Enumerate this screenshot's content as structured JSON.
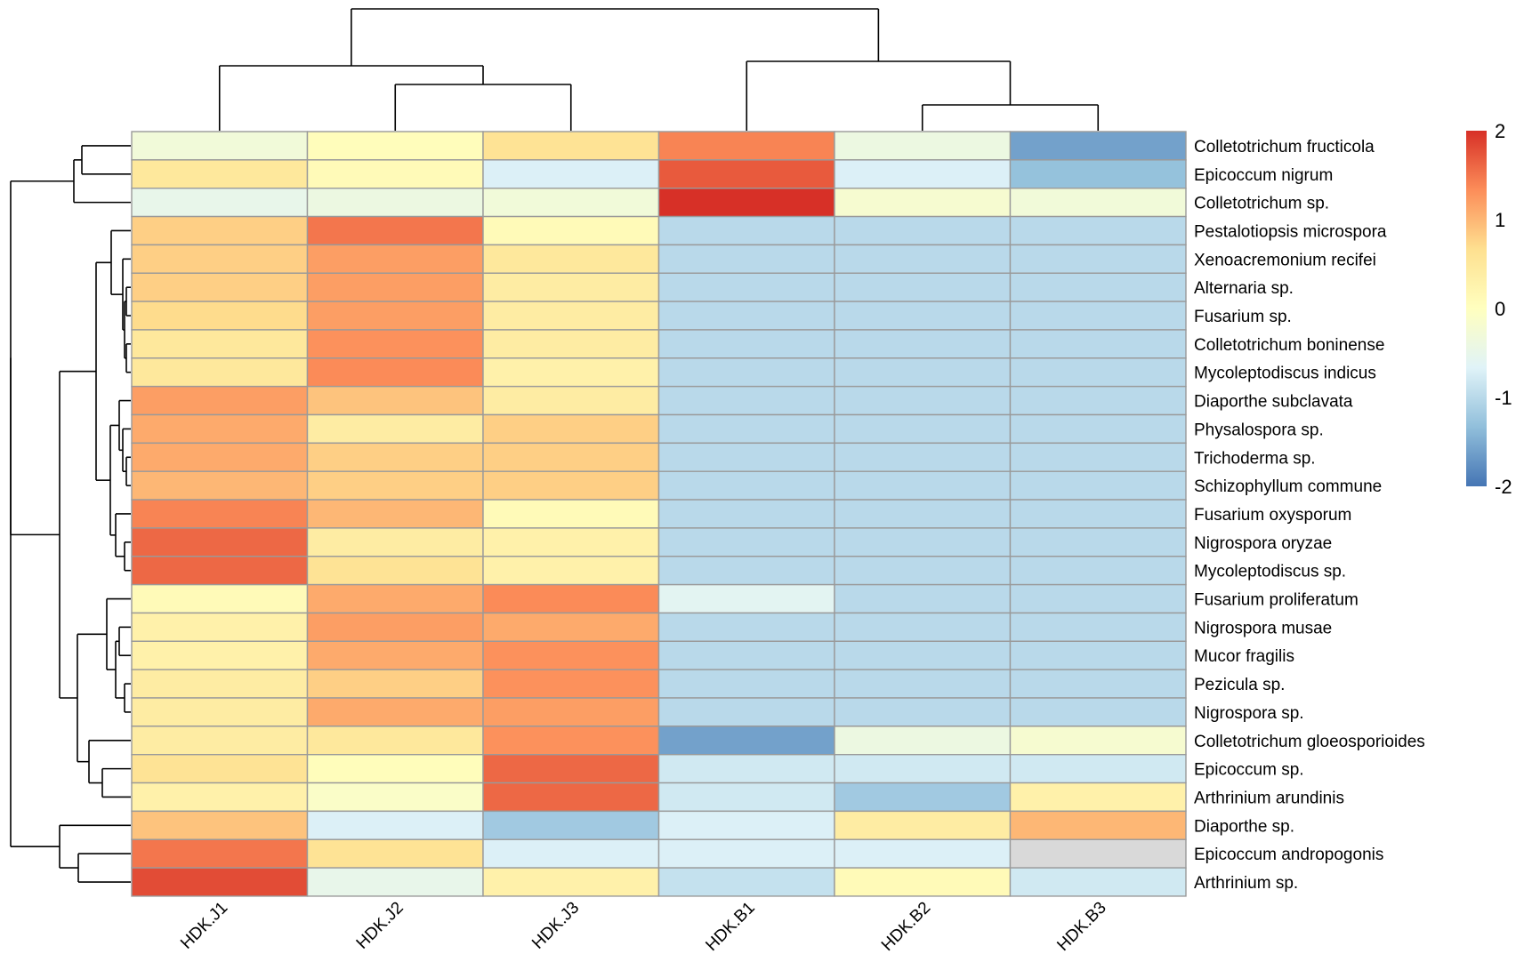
{
  "chart_data": {
    "type": "heatmap",
    "title": "",
    "columns": [
      "HDK.J1",
      "HDK.J2",
      "HDK.J3",
      "HDK.B1",
      "HDK.B2",
      "HDK.B3"
    ],
    "rows": [
      "Colletotrichum fructicola",
      "Epicoccum nigrum",
      "Colletotrichum sp.",
      "Pestalotiopsis microspora",
      "Xenoacremonium recifei",
      "Alternaria sp.",
      "Fusarium sp.",
      "Colletotrichum boninense",
      "Mycoleptodiscus indicus",
      "Diaporthe subclavata",
      "Physalospora sp.",
      "Trichoderma sp.",
      "Schizophyllum commune",
      "Fusarium oxysporum",
      "Nigrospora oryzae",
      "Mycoleptodiscus sp.",
      "Fusarium proliferatum",
      "Nigrospora musae",
      "Mucor fragilis",
      "Pezicula sp.",
      "Nigrospora sp.",
      "Colletotrichum gloeosporioides",
      "Epicoccum sp.",
      "Arthrinium arundinis",
      "Diaporthe sp.",
      "Epicoccum andropogonis",
      "Arthrinium sp."
    ],
    "values": [
      [
        -0.3,
        0.05,
        0.6,
        1.4,
        -0.4,
        -1.6
      ],
      [
        0.5,
        0.1,
        -0.7,
        1.7,
        -0.7,
        -1.3
      ],
      [
        -0.5,
        -0.4,
        -0.3,
        2.0,
        -0.2,
        -0.3
      ],
      [
        0.8,
        1.5,
        0.1,
        -1.0,
        -1.0,
        -1.0
      ],
      [
        0.8,
        1.2,
        0.5,
        -1.0,
        -1.0,
        -1.0
      ],
      [
        0.8,
        1.2,
        0.4,
        -1.0,
        -1.0,
        -1.0
      ],
      [
        0.7,
        1.2,
        0.4,
        -1.0,
        -1.0,
        -1.0
      ],
      [
        0.5,
        1.3,
        0.4,
        -1.0,
        -1.0,
        -1.0
      ],
      [
        0.5,
        1.35,
        0.3,
        -1.0,
        -1.0,
        -1.0
      ],
      [
        1.2,
        0.9,
        0.4,
        -1.0,
        -1.0,
        -1.0
      ],
      [
        1.1,
        0.4,
        0.8,
        -1.0,
        -1.0,
        -1.0
      ],
      [
        1.1,
        0.8,
        0.8,
        -1.0,
        -1.0,
        -1.0
      ],
      [
        1.0,
        0.8,
        0.8,
        -1.0,
        -1.0,
        -1.0
      ],
      [
        1.4,
        1.0,
        0.1,
        -1.0,
        -1.0,
        -1.0
      ],
      [
        1.6,
        0.4,
        0.3,
        -1.0,
        -1.0,
        -1.0
      ],
      [
        1.6,
        0.6,
        0.3,
        -1.0,
        -1.0,
        -1.0
      ],
      [
        0.1,
        1.1,
        1.35,
        -0.6,
        -1.0,
        -1.0
      ],
      [
        0.3,
        1.2,
        1.1,
        -1.0,
        -1.0,
        -1.0
      ],
      [
        0.3,
        1.1,
        1.3,
        -1.0,
        -1.0,
        -1.0
      ],
      [
        0.4,
        0.8,
        1.3,
        -1.0,
        -1.0,
        -1.0
      ],
      [
        0.4,
        1.1,
        1.2,
        -1.0,
        -1.0,
        -1.0
      ],
      [
        0.4,
        0.5,
        1.3,
        -1.6,
        -0.4,
        -0.2
      ],
      [
        0.6,
        0.05,
        1.6,
        -0.8,
        -0.8,
        -0.8
      ],
      [
        0.3,
        -0.1,
        1.6,
        -0.8,
        -1.2,
        0.3
      ],
      [
        0.9,
        -0.7,
        -1.2,
        -0.7,
        0.4,
        1.0
      ],
      [
        1.5,
        0.6,
        -0.7,
        -0.7,
        -0.7,
        null
      ],
      [
        1.8,
        -0.5,
        0.3,
        -0.9,
        0.1,
        -0.8
      ]
    ],
    "missing_color": "#d9d9d9",
    "color_scale": {
      "min": -2,
      "max": 2,
      "stops": [
        "#4575b4",
        "#91bfdb",
        "#e0f3f8",
        "#ffffbf",
        "#fee090",
        "#fc8d59",
        "#d73027"
      ],
      "ticks": [
        2,
        1,
        0,
        -1,
        -2
      ],
      "tick_labels": [
        "2",
        "1",
        "0",
        "-1",
        "-2"
      ]
    },
    "column_dendrogram": true,
    "row_dendrogram": true,
    "legend": "right"
  }
}
